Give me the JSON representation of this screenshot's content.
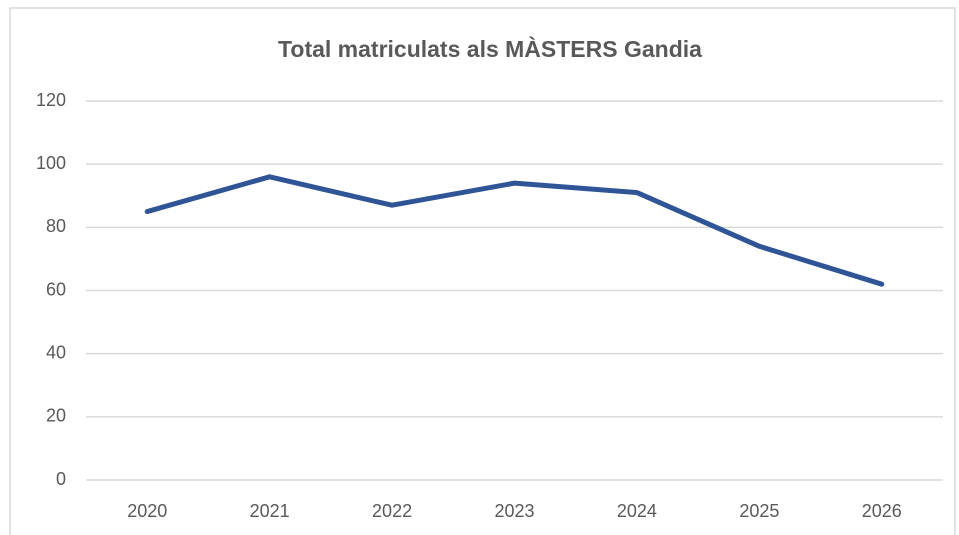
{
  "chart_data": {
    "type": "line",
    "title": "Total matriculats als MÀSTERS Gandia",
    "categories": [
      "2020",
      "2021",
      "2022",
      "2023",
      "2024",
      "2025",
      "2026"
    ],
    "series": [
      {
        "name": "Total",
        "color": "#2f5597",
        "values": [
          85,
          96,
          87,
          94,
          91,
          74,
          62
        ]
      }
    ],
    "ylim": [
      0,
      120
    ],
    "yticks": [
      0,
      20,
      40,
      60,
      80,
      100,
      120
    ],
    "grid": true
  }
}
